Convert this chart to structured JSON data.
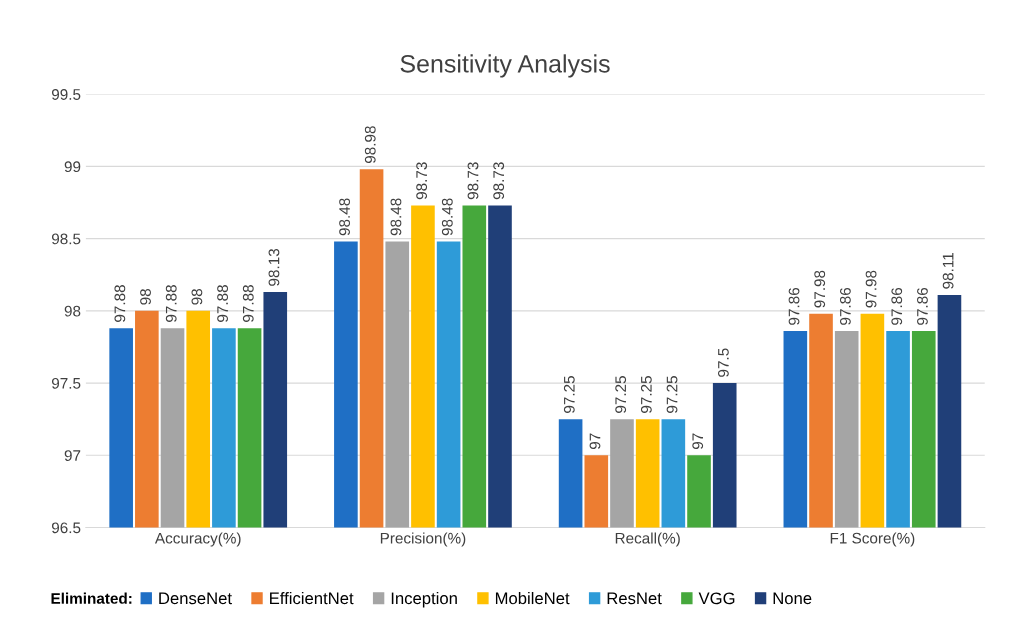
{
  "chart_data": {
    "type": "bar",
    "title": "Sensitivity Analysis",
    "legend_title": "Eliminated:",
    "categories": [
      "Accuracy(%)",
      "Precision(%)",
      "Recall(%)",
      "F1 Score(%)"
    ],
    "series": [
      {
        "name": "DenseNet",
        "color": "#1f6fc5",
        "values": [
          97.88,
          98.48,
          97.25,
          97.86
        ]
      },
      {
        "name": "EfficientNet",
        "color": "#ed7d31",
        "values": [
          98,
          98.98,
          97,
          97.98
        ]
      },
      {
        "name": "Inception",
        "color": "#a5a5a5",
        "values": [
          97.88,
          98.48,
          97.25,
          97.86
        ]
      },
      {
        "name": "MobileNet",
        "color": "#ffc000",
        "values": [
          98,
          98.73,
          97.25,
          97.98
        ]
      },
      {
        "name": "ResNet",
        "color": "#2e9bd8",
        "values": [
          97.88,
          98.48,
          97.25,
          97.86
        ]
      },
      {
        "name": "VGG",
        "color": "#46a83c",
        "values": [
          97.88,
          98.73,
          97,
          97.86
        ]
      },
      {
        "name": "None",
        "color": "#203f78",
        "values": [
          98.13,
          98.73,
          97.5,
          98.11
        ]
      }
    ],
    "ylim": [
      96.5,
      99.5
    ],
    "yticks": [
      96.5,
      97,
      97.5,
      98,
      98.5,
      99,
      99.5
    ],
    "grid": "y",
    "legend": "bottom",
    "data_labels": true
  }
}
